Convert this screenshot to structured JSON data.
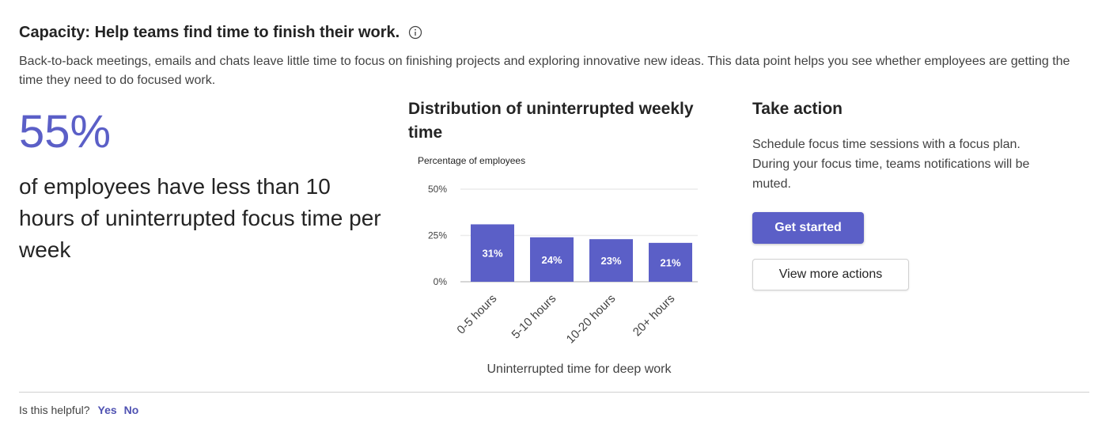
{
  "header": {
    "title": "Capacity: Help teams find time to finish their work.",
    "info_icon": "info-icon",
    "description": "Back-to-back meetings, emails and chats leave little time to focus on finishing projects and exploring innovative new ideas. This data point helps you see whether employees are getting the time they need to do focused work."
  },
  "insight": {
    "value": "55%",
    "text": "of employees have less than 10 hours of uninterrupted focus time per week"
  },
  "chart": {
    "title": "Distribution of uninterrupted weekly time"
  },
  "chart_data": {
    "type": "bar",
    "title": "Distribution of uninterrupted weekly time",
    "ylabel": "Percentage of employees",
    "xlabel": "Uninterrupted time for deep work",
    "categories": [
      "0-5 hours",
      "5-10 hours",
      "10-20 hours",
      "20+ hours"
    ],
    "values": [
      31,
      24,
      23,
      21
    ],
    "data_labels": [
      "31%",
      "24%",
      "23%",
      "21%"
    ],
    "ylim": [
      0,
      50
    ],
    "yticks": [
      0,
      25,
      50
    ],
    "ytick_labels": [
      "0%",
      "25%",
      "50%"
    ],
    "grid": true,
    "bar_color": "#5b5fc7"
  },
  "action": {
    "title": "Take action",
    "description": "Schedule focus time sessions with a focus plan. During your focus time, teams notifications will be muted.",
    "primary_label": "Get started",
    "secondary_label": "View more actions"
  },
  "feedback": {
    "question": "Is this helpful?",
    "yes": "Yes",
    "no": "No"
  },
  "colors": {
    "accent": "#5b5fc7",
    "link": "#4f52b2"
  }
}
